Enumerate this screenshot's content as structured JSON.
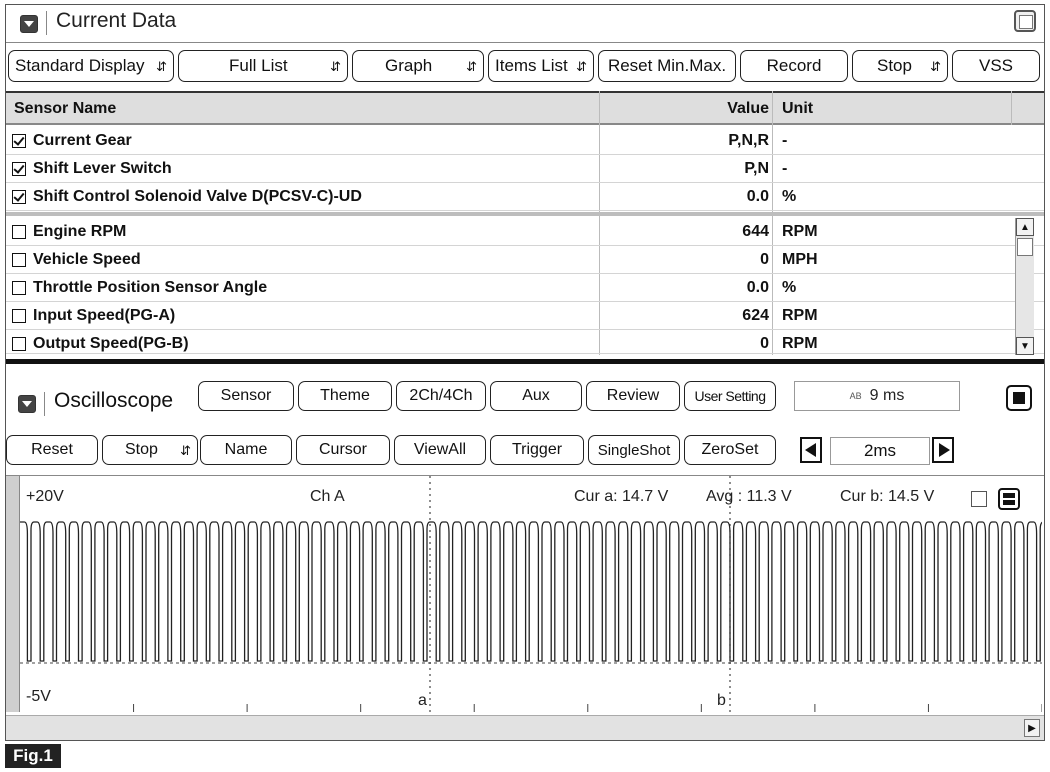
{
  "current_data": {
    "title": "Current Data",
    "toolbar": [
      {
        "label": "Standard Display",
        "dropdown": true
      },
      {
        "label": "Full List",
        "dropdown": true
      },
      {
        "label": "Graph",
        "dropdown": true
      },
      {
        "label": "Items List",
        "dropdown": true
      },
      {
        "label": "Reset Min.Max.",
        "dropdown": false
      },
      {
        "label": "Record",
        "dropdown": false
      },
      {
        "label": "Stop",
        "dropdown": true
      },
      {
        "label": "VSS",
        "dropdown": false
      }
    ],
    "columns": {
      "name": "Sensor Name",
      "value": "Value",
      "unit": "Unit"
    },
    "pinned_rows": [
      {
        "name": "Current Gear",
        "value": "P,N,R",
        "unit": "-",
        "checked": true
      },
      {
        "name": "Shift Lever Switch",
        "value": "P,N",
        "unit": "-",
        "checked": true
      },
      {
        "name": "Shift Control Solenoid Valve D(PCSV-C)-UD",
        "value": "0.0",
        "unit": "%",
        "checked": true
      }
    ],
    "rows": [
      {
        "name": "Engine RPM",
        "value": "644",
        "unit": "RPM",
        "checked": false
      },
      {
        "name": "Vehicle Speed",
        "value": "0",
        "unit": "MPH",
        "checked": false
      },
      {
        "name": "Throttle Position Sensor Angle",
        "value": "0.0",
        "unit": "%",
        "checked": false
      },
      {
        "name": "Input Speed(PG-A)",
        "value": "624",
        "unit": "RPM",
        "checked": false
      },
      {
        "name": "Output Speed(PG-B)",
        "value": "0",
        "unit": "RPM",
        "checked": false
      }
    ]
  },
  "oscilloscope": {
    "title": "Oscilloscope",
    "toolbar1": [
      "Sensor",
      "Theme",
      "2Ch/4Ch",
      "Aux",
      "Review",
      "User Setting"
    ],
    "time_display": "9 ms",
    "time_display_icon": "AB",
    "toolbar2": [
      {
        "label": "Reset",
        "dropdown": false
      },
      {
        "label": "Stop",
        "dropdown": true
      },
      {
        "label": "Name",
        "dropdown": false
      },
      {
        "label": "Cursor",
        "dropdown": false
      },
      {
        "label": "ViewAll",
        "dropdown": false
      },
      {
        "label": "Trigger",
        "dropdown": false
      },
      {
        "label": "SingleShot",
        "dropdown": false
      },
      {
        "label": "ZeroSet",
        "dropdown": false
      }
    ],
    "timebase": "2ms",
    "scope": {
      "y_max_label": "+20V",
      "y_min_label": "-5V",
      "channel": "Ch A",
      "cursor_a": "Cur a: 14.7 V",
      "average": "Avg : 11.3 V",
      "cursor_b": "Cur b: 14.5 V",
      "marker_a": "a",
      "marker_b": "b",
      "pulse_count": 80
    }
  },
  "figure_label": "Fig.1"
}
